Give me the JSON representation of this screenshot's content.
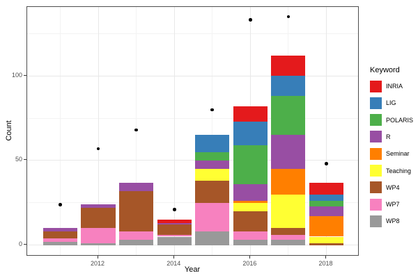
{
  "chart_data": {
    "type": "bar",
    "stacked": true,
    "xlabel": "Year",
    "ylabel": "Count",
    "legend_title": "Keyword",
    "legend_position": "right",
    "grid": true,
    "categories": [
      2011,
      2012,
      2013,
      2014,
      2015,
      2016,
      2017,
      2018
    ],
    "series": [
      {
        "name": "INRIA",
        "color": "#E41A1C",
        "values": [
          0,
          0,
          0,
          2,
          0,
          9,
          12,
          7
        ]
      },
      {
        "name": "LIG",
        "color": "#377EB8",
        "values": [
          0,
          0,
          0,
          0,
          10,
          14,
          12,
          4
        ]
      },
      {
        "name": "POLARIS",
        "color": "#4DAF4A",
        "values": [
          0,
          0,
          0,
          0,
          5,
          23,
          23,
          3
        ]
      },
      {
        "name": "R",
        "color": "#984EA3",
        "values": [
          2,
          2,
          5,
          1,
          5,
          10,
          20,
          6
        ]
      },
      {
        "name": "Seminar",
        "color": "#FF7F00",
        "values": [
          0,
          0,
          0,
          0,
          0,
          1,
          15,
          12
        ]
      },
      {
        "name": "Teaching",
        "color": "#FFFF33",
        "values": [
          0,
          0,
          0,
          0,
          7,
          5,
          20,
          4
        ]
      },
      {
        "name": "WP4",
        "color": "#A65628",
        "values": [
          4,
          12,
          24,
          6,
          13,
          12,
          4,
          1
        ]
      },
      {
        "name": "WP7",
        "color": "#F781BF",
        "values": [
          2,
          9,
          5,
          1,
          17,
          5,
          3,
          0
        ]
      },
      {
        "name": "WP8",
        "color": "#999999",
        "values": [
          2,
          1,
          3,
          5,
          8,
          3,
          3,
          0
        ]
      }
    ],
    "points": {
      "name": "yearly-total-points",
      "color": "#000000",
      "values": [
        24,
        57,
        68,
        21,
        80,
        133,
        135,
        48
      ]
    },
    "x_ticks": [
      2012,
      2014,
      2016,
      2018
    ],
    "x_tick_labels": [
      "2012",
      "2014",
      "2016",
      "2018"
    ],
    "y_ticks": [
      0,
      50,
      100
    ],
    "y_tick_labels": [
      "0",
      "50",
      "100"
    ],
    "x_grid_major": [
      2012,
      2014,
      2016,
      2018
    ],
    "x_grid_minor": [
      2011,
      2013,
      2015,
      2017
    ],
    "y_grid_major": [
      0,
      50,
      100
    ],
    "y_grid_minor": [
      25,
      75,
      125
    ],
    "xlim": [
      2010.13,
      2018.87
    ],
    "ylim": [
      -6.7,
      140.7
    ],
    "bar_width_fraction": 0.9,
    "colors": {
      "background": "#ffffff",
      "panel_border": "#4d4d4d",
      "grid_major": "#e8e8e8",
      "grid_minor": "#f3f3f3",
      "tick_text": "#4d4d4d",
      "title_text": "#000000",
      "point": "#000000"
    }
  }
}
